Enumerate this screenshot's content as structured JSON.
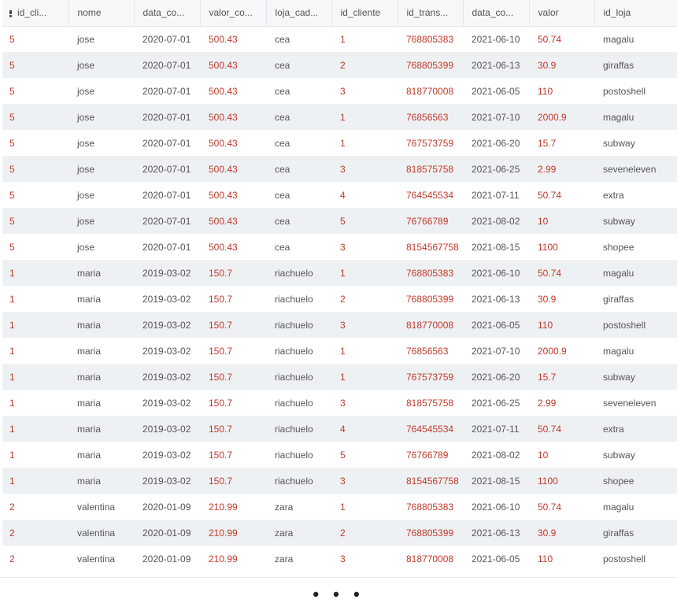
{
  "table": {
    "columns": [
      {
        "key": "id_cliente_1",
        "label": "id_cli..."
      },
      {
        "key": "nome",
        "label": "nome"
      },
      {
        "key": "data_cadastro",
        "label": "data_co..."
      },
      {
        "key": "valor_compra",
        "label": "valor_co..."
      },
      {
        "key": "loja_cadastro",
        "label": "loja_cad..."
      },
      {
        "key": "id_cliente",
        "label": "id_cliente"
      },
      {
        "key": "id_transacao",
        "label": "id_trans..."
      },
      {
        "key": "data_compra",
        "label": "data_co..."
      },
      {
        "key": "valor",
        "label": "valor"
      },
      {
        "key": "id_loja",
        "label": "id_loja"
      }
    ],
    "rows": [
      [
        "5",
        "jose",
        "2020-07-01",
        "500.43",
        "cea",
        "1",
        "768805383",
        "2021-06-10",
        "50.74",
        "magalu"
      ],
      [
        "5",
        "jose",
        "2020-07-01",
        "500.43",
        "cea",
        "2",
        "768805399",
        "2021-06-13",
        "30.9",
        "giraffas"
      ],
      [
        "5",
        "jose",
        "2020-07-01",
        "500.43",
        "cea",
        "3",
        "818770008",
        "2021-06-05",
        "110",
        "postoshell"
      ],
      [
        "5",
        "jose",
        "2020-07-01",
        "500.43",
        "cea",
        "1",
        "76856563",
        "2021-07-10",
        "2000.9",
        "magalu"
      ],
      [
        "5",
        "jose",
        "2020-07-01",
        "500.43",
        "cea",
        "1",
        "767573759",
        "2021-06-20",
        "15.7",
        "subway"
      ],
      [
        "5",
        "jose",
        "2020-07-01",
        "500.43",
        "cea",
        "3",
        "818575758",
        "2021-06-25",
        "2.99",
        "seveneleven"
      ],
      [
        "5",
        "jose",
        "2020-07-01",
        "500.43",
        "cea",
        "4",
        "764545534",
        "2021-07-11",
        "50.74",
        "extra"
      ],
      [
        "5",
        "jose",
        "2020-07-01",
        "500.43",
        "cea",
        "5",
        "76766789",
        "2021-08-02",
        "10",
        "subway"
      ],
      [
        "5",
        "jose",
        "2020-07-01",
        "500.43",
        "cea",
        "3",
        "8154567758",
        "2021-08-15",
        "1100",
        "shopee"
      ],
      [
        "1",
        "maria",
        "2019-03-02",
        "150.7",
        "riachuelo",
        "1",
        "768805383",
        "2021-06-10",
        "50.74",
        "magalu"
      ],
      [
        "1",
        "maria",
        "2019-03-02",
        "150.7",
        "riachuelo",
        "2",
        "768805399",
        "2021-06-13",
        "30.9",
        "giraffas"
      ],
      [
        "1",
        "maria",
        "2019-03-02",
        "150.7",
        "riachuelo",
        "3",
        "818770008",
        "2021-06-05",
        "110",
        "postoshell"
      ],
      [
        "1",
        "maria",
        "2019-03-02",
        "150.7",
        "riachuelo",
        "1",
        "76856563",
        "2021-07-10",
        "2000.9",
        "magalu"
      ],
      [
        "1",
        "maria",
        "2019-03-02",
        "150.7",
        "riachuelo",
        "1",
        "767573759",
        "2021-06-20",
        "15.7",
        "subway"
      ],
      [
        "1",
        "maria",
        "2019-03-02",
        "150.7",
        "riachuelo",
        "3",
        "818575758",
        "2021-06-25",
        "2.99",
        "seveneleven"
      ],
      [
        "1",
        "maria",
        "2019-03-02",
        "150.7",
        "riachuelo",
        "4",
        "764545534",
        "2021-07-11",
        "50.74",
        "extra"
      ],
      [
        "1",
        "maria",
        "2019-03-02",
        "150.7",
        "riachuelo",
        "5",
        "76766789",
        "2021-08-02",
        "10",
        "subway"
      ],
      [
        "1",
        "maria",
        "2019-03-02",
        "150.7",
        "riachuelo",
        "3",
        "8154567758",
        "2021-08-15",
        "1100",
        "shopee"
      ],
      [
        "2",
        "valentina",
        "2020-01-09",
        "210.99",
        "zara",
        "1",
        "768805383",
        "2021-06-10",
        "50.74",
        "magalu"
      ],
      [
        "2",
        "valentina",
        "2020-01-09",
        "210.99",
        "zara",
        "2",
        "768805399",
        "2021-06-13",
        "30.9",
        "giraffas"
      ],
      [
        "2",
        "valentina",
        "2020-01-09",
        "210.99",
        "zara",
        "3",
        "818770008",
        "2021-06-05",
        "110",
        "postoshell"
      ]
    ],
    "column_types": [
      "num",
      "str",
      "str",
      "num",
      "str",
      "num",
      "num",
      "str",
      "num",
      "str"
    ]
  },
  "footer": {
    "more_label": "• • •"
  },
  "colors": {
    "numeric_text": "#c0392b",
    "string_text": "#555555",
    "header_bg": "#f6f7f8",
    "stripe_bg": "#eef1f3"
  },
  "icons": {
    "first_header": "sort-icon"
  }
}
